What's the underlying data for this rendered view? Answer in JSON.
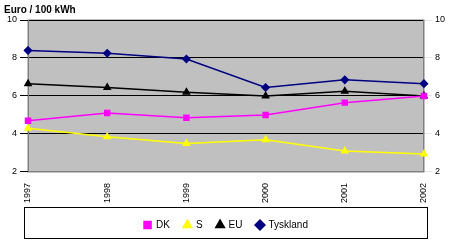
{
  "chart_data": {
    "type": "line",
    "title": "Euro / 100 kWh",
    "categories": [
      "1997",
      "1998",
      "1999",
      "2000",
      "2001",
      "2002"
    ],
    "series": [
      {
        "name": "DK",
        "color": "#ff00ff",
        "marker": "square",
        "values": [
          4.7,
          5.1,
          4.85,
          5.0,
          5.65,
          6.0
        ]
      },
      {
        "name": "S",
        "color": "#ffff00",
        "marker": "triangle",
        "values": [
          4.3,
          3.85,
          3.5,
          3.7,
          3.1,
          2.95
        ]
      },
      {
        "name": "EU",
        "color": "#000000",
        "marker": "triangle",
        "values": [
          6.65,
          6.45,
          6.2,
          6.0,
          6.25,
          6.0
        ]
      },
      {
        "name": "Tyskland",
        "color": "#000080",
        "marker": "diamond",
        "values": [
          8.4,
          8.25,
          7.95,
          6.45,
          6.85,
          6.65
        ]
      }
    ],
    "ylim": [
      2,
      10
    ],
    "yticks": [
      2,
      4,
      6,
      8,
      10
    ],
    "y2lim": [
      2,
      10
    ],
    "y2ticks": [
      2,
      4,
      6,
      8,
      10
    ],
    "grid": true,
    "legend": "bottom"
  }
}
